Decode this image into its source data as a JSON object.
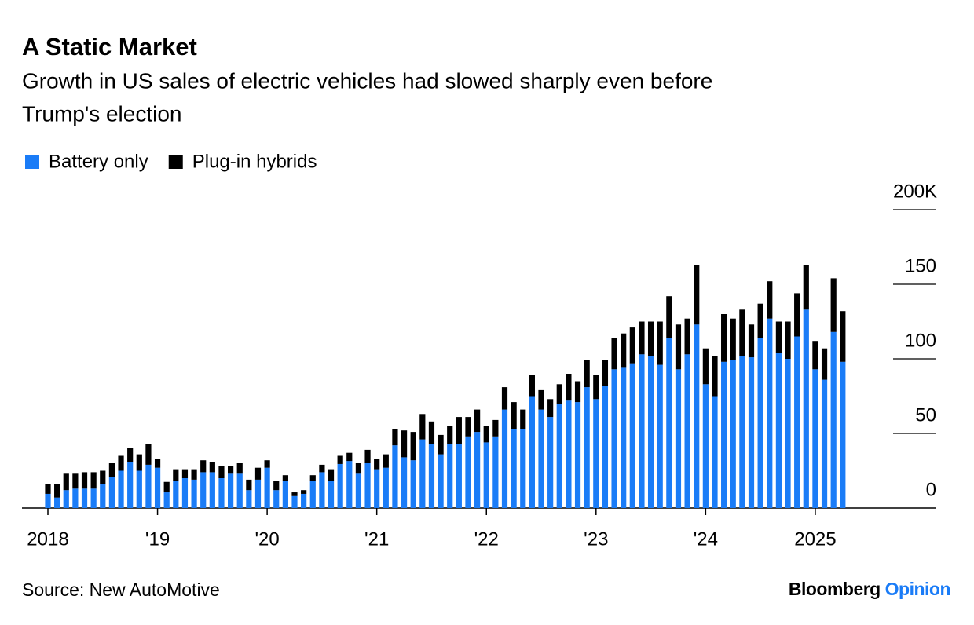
{
  "chart_data": {
    "type": "stacked-bar",
    "title": "A Static Market",
    "subtitle": [
      "Growth in US sales of electric vehicles had slowed sharply even before",
      "Trump's election"
    ],
    "categories": [
      "2018",
      null,
      null,
      null,
      null,
      null,
      null,
      null,
      null,
      null,
      null,
      null,
      "'19",
      null,
      null,
      null,
      null,
      null,
      null,
      null,
      null,
      null,
      null,
      null,
      "'20",
      null,
      null,
      null,
      null,
      null,
      null,
      null,
      null,
      null,
      null,
      null,
      "'21",
      null,
      null,
      null,
      null,
      null,
      null,
      null,
      null,
      null,
      null,
      null,
      "'22",
      null,
      null,
      null,
      null,
      null,
      null,
      null,
      null,
      null,
      null,
      null,
      "'23",
      null,
      null,
      null,
      null,
      null,
      null,
      null,
      null,
      null,
      null,
      null,
      "'24",
      null,
      null,
      null,
      null,
      null,
      null,
      null,
      null,
      null,
      null,
      null,
      "2025",
      null,
      null,
      null
    ],
    "series": [
      {
        "name": "Battery only",
        "color": "#1a7cf7",
        "values": [
          9.5,
          7,
          12,
          13,
          13,
          13,
          16,
          21,
          25,
          31,
          25,
          29,
          27,
          10.5,
          18,
          20,
          19,
          24,
          24,
          20,
          23,
          23,
          12,
          19,
          27,
          12,
          18,
          8,
          9.5,
          18,
          24,
          18,
          29.5,
          31.5,
          23,
          30,
          26,
          27,
          42,
          34,
          32,
          46,
          43,
          36,
          43,
          43,
          48,
          51,
          44,
          48,
          66,
          53,
          53,
          75,
          66,
          61,
          70,
          72,
          71,
          81,
          73,
          82,
          93,
          94,
          97,
          103,
          102,
          96,
          114,
          93,
          103,
          123,
          83,
          75,
          98,
          99,
          102,
          101,
          114,
          127,
          104,
          100,
          115,
          133,
          93,
          86,
          118,
          98
        ]
      },
      {
        "name": "Plug-in hybrids",
        "color": "#000000",
        "values": [
          6.5,
          9,
          11,
          10,
          11,
          11,
          9,
          9,
          10,
          9,
          11,
          14,
          6,
          7,
          8,
          6,
          7,
          8,
          7,
          8,
          5,
          7,
          7,
          8,
          5,
          6,
          4,
          2.5,
          2.5,
          4,
          5,
          8,
          5.5,
          5.5,
          7,
          9,
          7,
          9,
          11,
          18,
          19,
          17,
          15,
          13,
          12,
          18,
          13,
          15,
          11,
          11,
          15,
          18,
          13,
          14,
          13,
          12,
          13,
          18,
          14,
          18,
          16,
          17,
          21,
          23,
          24,
          22,
          23,
          29,
          28,
          30,
          24,
          40,
          24,
          27,
          32,
          28,
          31,
          22,
          23,
          25,
          21,
          25,
          29,
          30,
          19,
          21,
          36,
          34
        ]
      }
    ],
    "ylim": [
      0,
      200
    ],
    "yticks": [
      0,
      50,
      100,
      150,
      {
        "value": 200,
        "label": "200K"
      }
    ],
    "source": "Source: New AutoMotive",
    "logo": {
      "name": "Bloomberg",
      "product": "Opinion"
    }
  }
}
